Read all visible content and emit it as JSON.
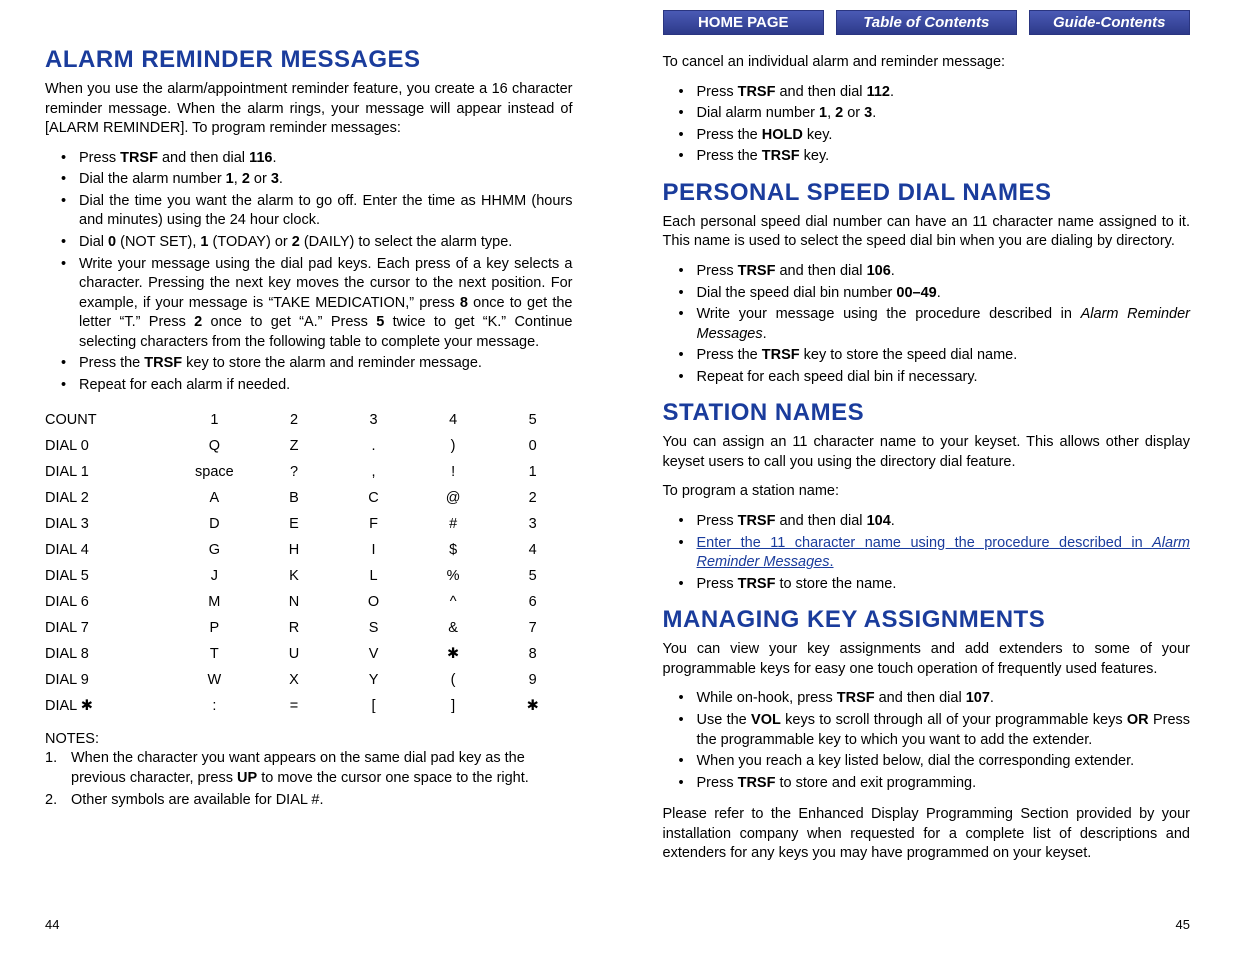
{
  "nav": {
    "home": "HOME PAGE",
    "toc": "Table of Contents",
    "guide": "Guide-Contents"
  },
  "leftPage": {
    "number": "44",
    "heading1": "ALARM REMINDER MESSAGES",
    "intro1": "When you use the alarm/appointment reminder feature, you  create a 16 character reminder message. When the alarm rings, your message will appear instead of [ALARM REMINDER]. To program reminder messages:",
    "list1": [
      "Press <b>TRSF</b> and then dial <b>116</b>.",
      "Dial the alarm number <b>1</b>, <b>2</b> or <b>3</b>.",
      "Dial the time you want the alarm to go off. Enter the time as HHMM (hours and minutes) using the 24 hour clock.",
      "Dial <b>0</b> (NOT SET), <b>1</b> (TODAY) or <b>2</b> (DAILY) to select the alarm type.",
      "Write your message using the dial pad keys. Each press of a key selects a character. Pressing the next key moves the cursor to the next position. For example, if your message is “TAKE MEDICATION,” press <b>8</b> once to get the letter “T.” Press <b>2</b> once to get “A.” Press <b>5</b> twice to get “K.” Continue selecting characters from the following table to complete your message.",
      "Press the <b>TRSF</b> key to store the alarm and reminder message.",
      "Repeat for each alarm if needed."
    ],
    "tableHeader": [
      "COUNT",
      "1",
      "2",
      "3",
      "4",
      "5"
    ],
    "tableRows": [
      [
        "DIAL 0",
        "Q",
        "Z",
        ".",
        ")",
        "0"
      ],
      [
        "DIAL 1",
        "space",
        "?",
        ",",
        "!",
        "1"
      ],
      [
        "DIAL 2",
        "A",
        "B",
        "C",
        "@",
        "2"
      ],
      [
        "DIAL 3",
        "D",
        "E",
        "F",
        "#",
        "3"
      ],
      [
        "DIAL 4",
        "G",
        "H",
        "I",
        "$",
        "4"
      ],
      [
        "DIAL 5",
        "J",
        "K",
        "L",
        "%",
        "5"
      ],
      [
        "DIAL 6",
        "M",
        "N",
        "O",
        "^",
        "6"
      ],
      [
        "DIAL 7",
        "P",
        "R",
        "S",
        "&",
        "7"
      ],
      [
        "DIAL 8",
        "T",
        "U",
        "V",
        "✱",
        "8"
      ],
      [
        "DIAL 9",
        "W",
        "X",
        "Y",
        "(",
        "9"
      ],
      [
        "DIAL ✱",
        ":",
        "=",
        "[",
        "]",
        "✱"
      ]
    ],
    "notesLabel": "NOTES:",
    "notes": [
      "When the character you want appears on the same dial pad key as the previous character, press <b>UP</b> to move the cursor one space to the right.",
      "Other symbols are available for DIAL #."
    ]
  },
  "rightPage": {
    "number": "45",
    "cancelIntro": "To cancel an individual alarm and reminder message:",
    "cancelList": [
      "Press <b>TRSF</b> and then dial <b>112</b>.",
      "Dial alarm number <b>1</b>, <b>2</b> or <b>3</b>.",
      "Press the <b>HOLD</b> key.",
      "Press the <b>TRSF</b> key."
    ],
    "heading2": "PERSONAL SPEED DIAL NAMES",
    "intro2": "Each personal speed dial number can have an 11 character name assigned to it. This name is used to select the speed dial bin when you are dialing by directory.",
    "list2": [
      "Press <b>TRSF</b> and then dial <b>106</b>.",
      "Dial the speed dial bin number <b>00–49</b>.",
      "Write your message using the procedure described in <em>Alarm Reminder Messages</em>.",
      "Press the <b>TRSF</b> key to store the speed dial name.",
      "Repeat for each speed dial bin if necessary."
    ],
    "heading3": "STATION NAMES",
    "intro3": "You can assign an 11 character name to your keyset. This allows other display keyset users to call you using the directory dial feature.",
    "intro3b": "To program a station name:",
    "list3": [
      "Press <b>TRSF</b> and then dial <b>104</b>.",
      "<span class='link-text'>Enter the 11 character name using the procedure described in <em>Alarm Reminder Messages</em>.</span>",
      "Press <b>TRSF</b> to store the name."
    ],
    "heading4": "MANAGING KEY ASSIGNMENTS",
    "intro4": "You can view your key assignments and add extenders to some of your programmable keys for easy one touch operation of frequently used features.",
    "list4": [
      "While on-hook, press <b>TRSF</b> and then dial <b>107</b>.",
      "Use the <b>VOL</b> keys to scroll through all of your programmable keys <b>OR</b> Press the programmable key to which you want to add the extender.",
      "When you reach a key listed below, dial the corresponding extender.",
      "Press <b>TRSF</b> to store and exit programming."
    ],
    "outro4": "Please refer to the Enhanced Display Programming Section provided by your installation company when requested for a complete list of descriptions and extenders for any keys you may have programmed on your keyset."
  },
  "colors": {
    "heading": "#1a3c9c",
    "navBg": "#3c4a9e",
    "text": "#000000",
    "link": "#1a3c9c"
  }
}
